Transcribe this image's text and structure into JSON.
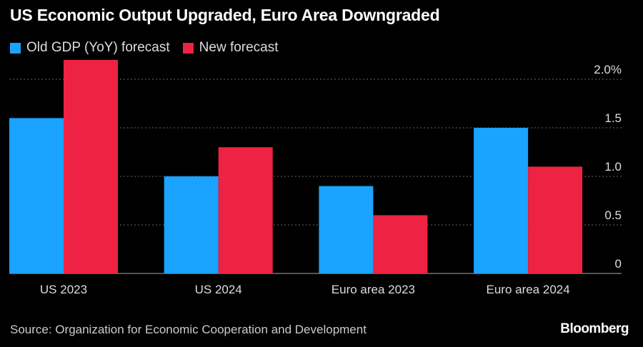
{
  "title": "US Economic Output Upgraded, Euro Area Downgraded",
  "source": "Source: Organization for Economic Cooperation and Development",
  "brand": "Bloomberg",
  "chart_data": {
    "type": "bar",
    "title": "US Economic Output Upgraded, Euro Area Downgraded",
    "categories": [
      "US 2023",
      "US 2024",
      "Euro area 2023",
      "Euro area 2024"
    ],
    "series": [
      {
        "name": "Old GDP (YoY) forecast",
        "color": "#1aa3ff",
        "values": [
          1.6,
          1.0,
          0.9,
          1.5
        ]
      },
      {
        "name": "New forecast",
        "color": "#ee2242",
        "values": [
          2.2,
          1.3,
          0.6,
          1.1
        ]
      }
    ],
    "ylim": [
      0,
      2.0
    ],
    "yticks": [
      0,
      0.5,
      1.0,
      1.5,
      2.0
    ],
    "ytick_labels": [
      "0",
      "0.5",
      "1.0",
      "1.5",
      "2.0%"
    ],
    "y_axis_position": "right",
    "grid": true,
    "legend_position": "top-left"
  }
}
